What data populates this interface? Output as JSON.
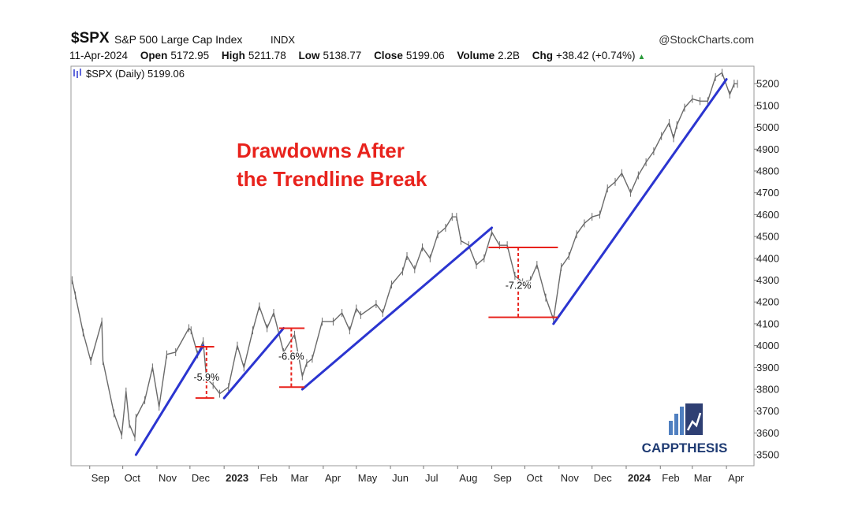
{
  "header": {
    "symbol": "$SPX",
    "name": "S&P 500 Large Cap Index",
    "type": "INDX",
    "brand": "@StockCharts.com",
    "quote": {
      "date": "11-Apr-2024",
      "open_label": "Open",
      "open": "5172.95",
      "high_label": "High",
      "high": "5211.78",
      "low_label": "Low",
      "low": "5138.77",
      "close_label": "Close",
      "close": "5199.06",
      "volume_label": "Volume",
      "volume": "2.2B",
      "chg_label": "Chg",
      "chg": "+38.42 (+0.74%)"
    }
  },
  "legend": {
    "text": "$SPX (Daily) 5199.06"
  },
  "annotation": {
    "line1": "Drawdowns After",
    "line2": "the Trendline Break"
  },
  "logo": {
    "text": "CAPPTHESIS"
  },
  "colors": {
    "price": "#6a6a6a",
    "trendline": "#2b35d0",
    "annotation": "#e8221c",
    "logo": "#1f3b73",
    "up": "#2a9a3a"
  },
  "chart_data": {
    "type": "line",
    "title": "$SPX (Daily) 5199.06",
    "xlabel": "",
    "ylabel": "",
    "ylim": [
      3450,
      5280
    ],
    "xlim": [
      "2022-08-15",
      "2024-04-26"
    ],
    "yticks": [
      3500,
      3600,
      3700,
      3800,
      3900,
      4000,
      4100,
      4200,
      4300,
      4400,
      4500,
      4600,
      4700,
      4800,
      4900,
      5000,
      5100,
      5200
    ],
    "xticks": [
      {
        "date": "2022-09-01",
        "label": "Sep"
      },
      {
        "date": "2022-10-01",
        "label": "Oct"
      },
      {
        "date": "2022-11-01",
        "label": "Nov"
      },
      {
        "date": "2022-12-01",
        "label": "Dec"
      },
      {
        "date": "2023-01-01",
        "label": "2023",
        "bold": true
      },
      {
        "date": "2023-02-01",
        "label": "Feb"
      },
      {
        "date": "2023-03-01",
        "label": "Mar"
      },
      {
        "date": "2023-04-01",
        "label": "Apr"
      },
      {
        "date": "2023-05-01",
        "label": "May"
      },
      {
        "date": "2023-06-01",
        "label": "Jun"
      },
      {
        "date": "2023-07-01",
        "label": "Jul"
      },
      {
        "date": "2023-08-01",
        "label": "Aug"
      },
      {
        "date": "2023-09-01",
        "label": "Sep"
      },
      {
        "date": "2023-10-01",
        "label": "Oct"
      },
      {
        "date": "2023-11-01",
        "label": "Nov"
      },
      {
        "date": "2023-12-01",
        "label": "Dec"
      },
      {
        "date": "2024-01-01",
        "label": "2024",
        "bold": true
      },
      {
        "date": "2024-02-01",
        "label": "Feb"
      },
      {
        "date": "2024-03-01",
        "label": "Mar"
      },
      {
        "date": "2024-04-01",
        "label": "Apr"
      }
    ],
    "grid": false,
    "legend": "top-left",
    "series": [
      {
        "name": "$SPX",
        "points": [
          [
            "2022-08-16",
            4300
          ],
          [
            "2022-08-19",
            4230
          ],
          [
            "2022-08-26",
            4060
          ],
          [
            "2022-09-02",
            3930
          ],
          [
            "2022-09-12",
            4110
          ],
          [
            "2022-09-13",
            3930
          ],
          [
            "2022-09-23",
            3690
          ],
          [
            "2022-09-30",
            3590
          ],
          [
            "2022-10-04",
            3790
          ],
          [
            "2022-10-07",
            3640
          ],
          [
            "2022-10-12",
            3580
          ],
          [
            "2022-10-13",
            3670
          ],
          [
            "2022-10-21",
            3750
          ],
          [
            "2022-10-28",
            3900
          ],
          [
            "2022-11-03",
            3720
          ],
          [
            "2022-11-10",
            3960
          ],
          [
            "2022-11-18",
            3970
          ],
          [
            "2022-11-30",
            4080
          ],
          [
            "2022-12-02",
            4070
          ],
          [
            "2022-12-08",
            3960
          ],
          [
            "2022-12-13",
            4020
          ],
          [
            "2022-12-16",
            3850
          ],
          [
            "2022-12-22",
            3820
          ],
          [
            "2022-12-28",
            3780
          ],
          [
            "2023-01-05",
            3810
          ],
          [
            "2023-01-13",
            4000
          ],
          [
            "2023-01-19",
            3900
          ],
          [
            "2023-01-27",
            4070
          ],
          [
            "2023-02-02",
            4180
          ],
          [
            "2023-02-09",
            4080
          ],
          [
            "2023-02-15",
            4150
          ],
          [
            "2023-02-24",
            3970
          ],
          [
            "2023-03-06",
            4050
          ],
          [
            "2023-03-13",
            3860
          ],
          [
            "2023-03-17",
            3920
          ],
          [
            "2023-03-22",
            3940
          ],
          [
            "2023-03-31",
            4110
          ],
          [
            "2023-04-10",
            4110
          ],
          [
            "2023-04-18",
            4150
          ],
          [
            "2023-04-25",
            4070
          ],
          [
            "2023-05-01",
            4170
          ],
          [
            "2023-05-05",
            4140
          ],
          [
            "2023-05-19",
            4190
          ],
          [
            "2023-05-25",
            4150
          ],
          [
            "2023-06-02",
            4280
          ],
          [
            "2023-06-12",
            4340
          ],
          [
            "2023-06-16",
            4410
          ],
          [
            "2023-06-23",
            4350
          ],
          [
            "2023-06-30",
            4450
          ],
          [
            "2023-07-07",
            4400
          ],
          [
            "2023-07-14",
            4510
          ],
          [
            "2023-07-21",
            4540
          ],
          [
            "2023-07-27",
            4590
          ],
          [
            "2023-07-31",
            4590
          ],
          [
            "2023-08-04",
            4480
          ],
          [
            "2023-08-11",
            4460
          ],
          [
            "2023-08-18",
            4370
          ],
          [
            "2023-08-25",
            4400
          ],
          [
            "2023-09-01",
            4520
          ],
          [
            "2023-09-08",
            4460
          ],
          [
            "2023-09-15",
            4460
          ],
          [
            "2023-09-22",
            4320
          ],
          [
            "2023-09-29",
            4290
          ],
          [
            "2023-10-06",
            4300
          ],
          [
            "2023-10-12",
            4370
          ],
          [
            "2023-10-20",
            4220
          ],
          [
            "2023-10-27",
            4120
          ],
          [
            "2023-11-03",
            4360
          ],
          [
            "2023-11-10",
            4410
          ],
          [
            "2023-11-17",
            4510
          ],
          [
            "2023-11-24",
            4560
          ],
          [
            "2023-12-01",
            4590
          ],
          [
            "2023-12-08",
            4600
          ],
          [
            "2023-12-15",
            4720
          ],
          [
            "2023-12-22",
            4750
          ],
          [
            "2023-12-28",
            4790
          ],
          [
            "2024-01-05",
            4700
          ],
          [
            "2024-01-12",
            4780
          ],
          [
            "2024-01-19",
            4840
          ],
          [
            "2024-01-26",
            4890
          ],
          [
            "2024-02-02",
            4960
          ],
          [
            "2024-02-09",
            5020
          ],
          [
            "2024-02-13",
            4950
          ],
          [
            "2024-02-16",
            5010
          ],
          [
            "2024-02-23",
            5090
          ],
          [
            "2024-03-01",
            5130
          ],
          [
            "2024-03-08",
            5120
          ],
          [
            "2024-03-15",
            5120
          ],
          [
            "2024-03-22",
            5230
          ],
          [
            "2024-03-28",
            5250
          ],
          [
            "2024-04-04",
            5150
          ],
          [
            "2024-04-08",
            5200
          ],
          [
            "2024-04-11",
            5199
          ]
        ]
      }
    ],
    "trendlines": [
      {
        "from": [
          "2022-10-13",
          3500
        ],
        "to": [
          "2022-12-13",
          4000
        ]
      },
      {
        "from": [
          "2023-01-01",
          3760
        ],
        "to": [
          "2023-02-24",
          4080
        ]
      },
      {
        "from": [
          "2023-03-13",
          3800
        ],
        "to": [
          "2023-09-01",
          4540
        ]
      },
      {
        "from": [
          "2023-10-27",
          4100
        ],
        "to": [
          "2024-04-01",
          5220
        ]
      }
    ],
    "drawdowns": [
      {
        "label": "-5.9%",
        "from": "2022-12-06",
        "to": "2022-12-23",
        "high": 3995,
        "low": 3760,
        "marker": "2022-12-16",
        "label_y": 3840
      },
      {
        "label": "-6.6%",
        "from": "2023-02-20",
        "to": "2023-03-15",
        "high": 4080,
        "low": 3810,
        "marker": "2023-03-03",
        "label_y": 3935
      },
      {
        "label": "-7.2%",
        "from": "2023-08-29",
        "to": "2023-10-31",
        "high": 4450,
        "low": 4130,
        "marker": "2023-09-25",
        "label_y": 4260
      }
    ]
  }
}
